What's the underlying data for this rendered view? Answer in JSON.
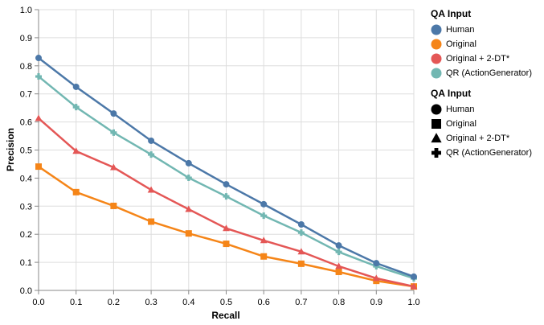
{
  "chart_data": {
    "type": "line",
    "title": "",
    "xlabel": "Recall",
    "ylabel": "Precision",
    "xlim": [
      0,
      1
    ],
    "ylim": [
      0,
      1
    ],
    "grid": true,
    "x_ticks": [
      "0.0",
      "0.1",
      "0.2",
      "0.3",
      "0.4",
      "0.5",
      "0.6",
      "0.7",
      "0.8",
      "0.9",
      "1.0"
    ],
    "y_ticks": [
      "0.0",
      "0.1",
      "0.2",
      "0.3",
      "0.4",
      "0.5",
      "0.6",
      "0.7",
      "0.8",
      "0.9",
      "1.0"
    ],
    "x": [
      0.0,
      0.1,
      0.2,
      0.3,
      0.4,
      0.5,
      0.6,
      0.7,
      0.8,
      0.9,
      1.0
    ],
    "series": [
      {
        "name": "Human",
        "color": "#4c78a8",
        "shape": "circle",
        "values": [
          0.828,
          0.725,
          0.63,
          0.533,
          0.453,
          0.378,
          0.307,
          0.235,
          0.16,
          0.097,
          0.049
        ]
      },
      {
        "name": "Original",
        "color": "#f58518",
        "shape": "square",
        "values": [
          0.441,
          0.35,
          0.301,
          0.245,
          0.203,
          0.166,
          0.121,
          0.095,
          0.066,
          0.034,
          0.014
        ]
      },
      {
        "name": "Original + 2-DT*",
        "color": "#e45756",
        "shape": "triangle",
        "values": [
          0.613,
          0.496,
          0.438,
          0.358,
          0.289,
          0.221,
          0.178,
          0.138,
          0.086,
          0.043,
          0.014
        ]
      },
      {
        "name": "QR (ActionGenerator)",
        "color": "#72b7b2",
        "shape": "cross",
        "values": [
          0.762,
          0.653,
          0.562,
          0.484,
          0.401,
          0.335,
          0.266,
          0.206,
          0.137,
          0.086,
          0.043
        ]
      }
    ],
    "legend_placement": "right",
    "legends": [
      {
        "title": "QA Input",
        "kind": "color"
      },
      {
        "title": "QA Input",
        "kind": "shape"
      }
    ]
  }
}
